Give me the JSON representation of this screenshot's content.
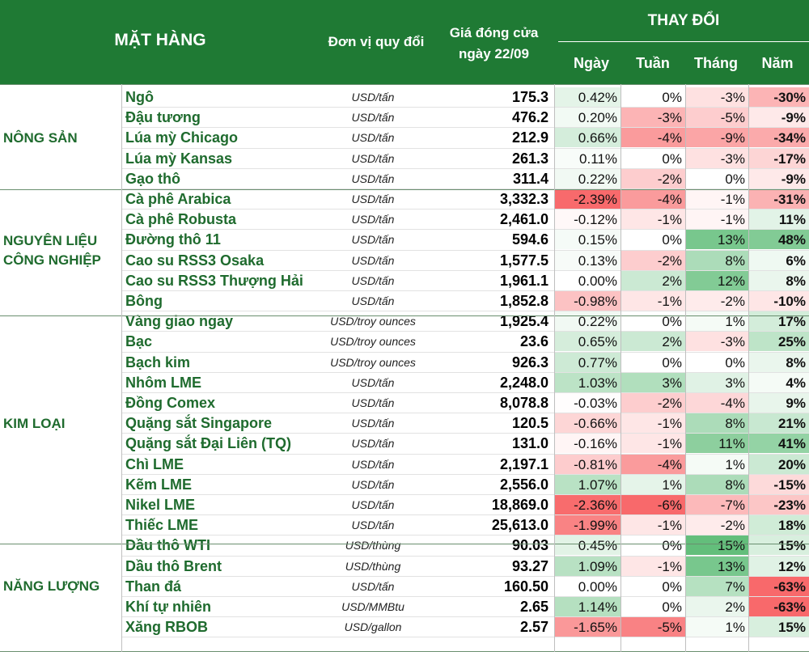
{
  "header": {
    "product": "MẶT HÀNG",
    "unit": "Đơn vị quy đổi",
    "close_line1": "Giá đóng cửa",
    "close_line2": "ngày 22/09",
    "change": "THAY ĐỔI",
    "day": "Ngày",
    "week": "Tuần",
    "month": "Tháng",
    "year": "Năm"
  },
  "colors": {
    "header_bg": "#1f7a34",
    "label_green": "#1f6b2e",
    "positive_strong": "#63be7b",
    "negative_strong": "#f8696b"
  },
  "groups": [
    {
      "label_line1": "NÔNG SẢN",
      "label_line2": ""
    },
    {
      "label_line1": "NGUYÊN LIỆU",
      "label_line2": "CÔNG NGHIỆP"
    },
    {
      "label_line1": "KIM LOẠI",
      "label_line2": ""
    },
    {
      "label_line1": "NĂNG LƯỢNG",
      "label_line2": ""
    }
  ],
  "rows": [
    {
      "name": "Ngô",
      "unit": "USD/tấn",
      "close": "175.3",
      "day": "0.42%",
      "week": "0%",
      "month": "-3%",
      "year": "-30%"
    },
    {
      "name": "Đậu tương",
      "unit": "USD/tấn",
      "close": "476.2",
      "day": "0.20%",
      "week": "-3%",
      "month": "-5%",
      "year": "-9%"
    },
    {
      "name": "Lúa mỳ Chicago",
      "unit": "USD/tấn",
      "close": "212.9",
      "day": "0.66%",
      "week": "-4%",
      "month": "-9%",
      "year": "-34%"
    },
    {
      "name": "Lúa mỳ Kansas",
      "unit": "USD/tấn",
      "close": "261.3",
      "day": "0.11%",
      "week": "0%",
      "month": "-3%",
      "year": "-17%"
    },
    {
      "name": "Gạo thô",
      "unit": "USD/tấn",
      "close": "311.4",
      "day": "0.22%",
      "week": "-2%",
      "month": "0%",
      "year": "-9%"
    },
    {
      "name": "Cà phê Arabica",
      "unit": "USD/tấn",
      "close": "3,332.3",
      "day": "-2.39%",
      "week": "-4%",
      "month": "-1%",
      "year": "-31%"
    },
    {
      "name": "Cà phê Robusta",
      "unit": "USD/tấn",
      "close": "2,461.0",
      "day": "-0.12%",
      "week": "-1%",
      "month": "-1%",
      "year": "11%"
    },
    {
      "name": "Đường thô 11",
      "unit": "USD/tấn",
      "close": "594.6",
      "day": "0.15%",
      "week": "0%",
      "month": "13%",
      "year": "48%"
    },
    {
      "name": "Cao su RSS3 Osaka",
      "unit": "USD/tấn",
      "close": "1,577.5",
      "day": "0.13%",
      "week": "-2%",
      "month": "8%",
      "year": "6%"
    },
    {
      "name": "Cao su RSS3 Thượng Hải",
      "unit": "USD/tấn",
      "close": "1,961.1",
      "day": "0.00%",
      "week": "2%",
      "month": "12%",
      "year": "8%"
    },
    {
      "name": "Bông",
      "unit": "USD/tấn",
      "close": "1,852.8",
      "day": "-0.98%",
      "week": "-1%",
      "month": "-2%",
      "year": "-10%"
    },
    {
      "name": "Vàng giao ngay",
      "unit": "USD/troy ounces",
      "close": "1,925.4",
      "day": "0.22%",
      "week": "0%",
      "month": "1%",
      "year": "17%"
    },
    {
      "name": "Bạc",
      "unit": "USD/troy ounces",
      "close": "23.6",
      "day": "0.65%",
      "week": "2%",
      "month": "-3%",
      "year": "25%"
    },
    {
      "name": "Bạch kim",
      "unit": "USD/troy ounces",
      "close": "926.3",
      "day": "0.77%",
      "week": "0%",
      "month": "0%",
      "year": "8%"
    },
    {
      "name": "Nhôm LME",
      "unit": "USD/tấn",
      "close": "2,248.0",
      "day": "1.03%",
      "week": "3%",
      "month": "3%",
      "year": "4%"
    },
    {
      "name": "Đồng Comex",
      "unit": "USD/tấn",
      "close": "8,078.8",
      "day": "-0.03%",
      "week": "-2%",
      "month": "-4%",
      "year": "9%"
    },
    {
      "name": "Quặng sắt Singapore",
      "unit": "USD/tấn",
      "close": "120.5",
      "day": "-0.66%",
      "week": "-1%",
      "month": "8%",
      "year": "21%"
    },
    {
      "name": "Quặng sắt Đại Liên (TQ)",
      "unit": "USD/tấn",
      "close": "131.0",
      "day": "-0.16%",
      "week": "-1%",
      "month": "11%",
      "year": "41%"
    },
    {
      "name": "Chì LME",
      "unit": "USD/tấn",
      "close": "2,197.1",
      "day": "-0.81%",
      "week": "-4%",
      "month": "1%",
      "year": "20%"
    },
    {
      "name": "Kẽm LME",
      "unit": "USD/tấn",
      "close": "2,556.0",
      "day": "1.07%",
      "week": "1%",
      "month": "8%",
      "year": "-15%"
    },
    {
      "name": "Nikel LME",
      "unit": "USD/tấn",
      "close": "18,869.0",
      "day": "-2.36%",
      "week": "-6%",
      "month": "-7%",
      "year": "-23%"
    },
    {
      "name": "Thiếc LME",
      "unit": "USD/tấn",
      "close": "25,613.0",
      "day": "-1.99%",
      "week": "-1%",
      "month": "-2%",
      "year": "18%"
    },
    {
      "name": "Dầu thô WTI",
      "unit": "USD/thùng",
      "close": "90.03",
      "day": "0.45%",
      "week": "0%",
      "month": "15%",
      "year": "15%"
    },
    {
      "name": "Dầu thô Brent",
      "unit": "USD/thùng",
      "close": "93.27",
      "day": "1.09%",
      "week": "-1%",
      "month": "13%",
      "year": "12%"
    },
    {
      "name": "Than đá",
      "unit": "USD/tấn",
      "close": "160.50",
      "day": "0.00%",
      "week": "0%",
      "month": "7%",
      "year": "-63%"
    },
    {
      "name": "Khí tự nhiên",
      "unit": "USD/MMBtu",
      "close": "2.65",
      "day": "1.14%",
      "week": "0%",
      "month": "2%",
      "year": "-63%"
    },
    {
      "name": "Xăng RBOB",
      "unit": "USD/gallon",
      "close": "2.57",
      "day": "-1.65%",
      "week": "-5%",
      "month": "1%",
      "year": "15%"
    }
  ]
}
